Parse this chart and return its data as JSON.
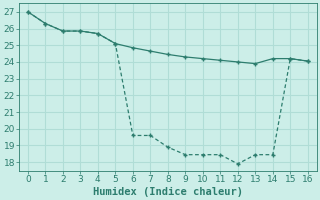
{
  "line1_x": [
    0,
    1,
    2,
    3,
    4,
    5,
    6,
    7,
    8,
    9,
    10,
    11,
    12,
    13,
    14,
    15,
    16
  ],
  "line1_y": [
    27,
    26.3,
    25.85,
    25.85,
    25.7,
    25.1,
    24.85,
    24.65,
    24.45,
    24.3,
    24.2,
    24.1,
    24.0,
    23.9,
    24.2,
    24.2,
    24.05
  ],
  "line2_x": [
    0,
    1,
    2,
    3,
    4,
    5,
    6,
    7,
    8,
    9,
    10,
    11,
    12,
    13,
    14,
    15,
    16
  ],
  "line2_y": [
    27,
    26.3,
    25.85,
    25.85,
    25.7,
    25.1,
    19.6,
    19.6,
    18.9,
    18.45,
    18.45,
    18.45,
    17.9,
    18.45,
    18.45,
    24.2,
    24.05
  ],
  "color": "#2d7d6e",
  "bg_color": "#cceee8",
  "grid_color": "#b0ddd6",
  "xlabel": "Humidex (Indice chaleur)",
  "ylim": [
    17.5,
    27.5
  ],
  "xlim": [
    -0.5,
    16.5
  ],
  "yticks": [
    18,
    19,
    20,
    21,
    22,
    23,
    24,
    25,
    26,
    27
  ],
  "xticks": [
    0,
    1,
    2,
    3,
    4,
    5,
    6,
    7,
    8,
    9,
    10,
    11,
    12,
    13,
    14,
    15,
    16
  ],
  "xlabel_fontsize": 7.5,
  "tick_fontsize": 6.5
}
